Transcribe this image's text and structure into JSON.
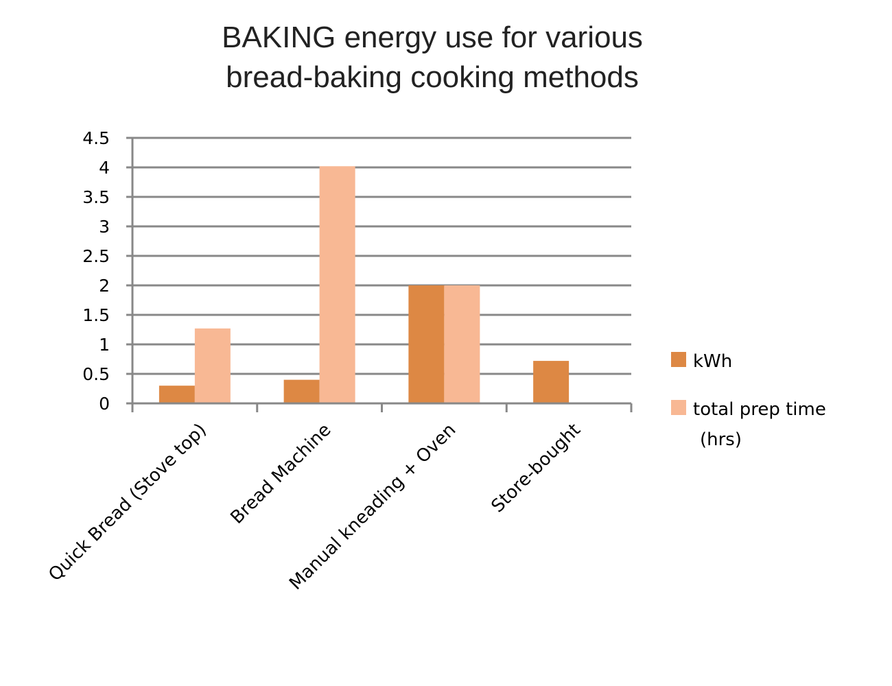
{
  "chart_data": {
    "type": "bar",
    "title_lines": [
      "BAKING energy use for various",
      "bread-baking cooking methods"
    ],
    "categories": [
      "Quick Bread (Stove top)",
      "Bread Machine",
      "Manual kneading + Oven",
      "Store-bought"
    ],
    "series": [
      {
        "name": "kWh",
        "color": "#dd8844",
        "values": [
          0.3,
          0.4,
          2.0,
          0.72
        ]
      },
      {
        "name": "total prep time (hrs)",
        "legend_lines": [
          "total prep time",
          "(hrs)"
        ],
        "color": "#f8b894",
        "values": [
          1.27,
          4.02,
          2.0,
          null
        ]
      }
    ],
    "ylim": [
      0,
      4.5
    ],
    "yticks": [
      "0",
      "0.5",
      "1",
      "1.5",
      "2",
      "2.5",
      "3",
      "3.5",
      "4",
      "4.5"
    ],
    "grid": true,
    "legend_position": "right",
    "axis_color": "#888888"
  }
}
